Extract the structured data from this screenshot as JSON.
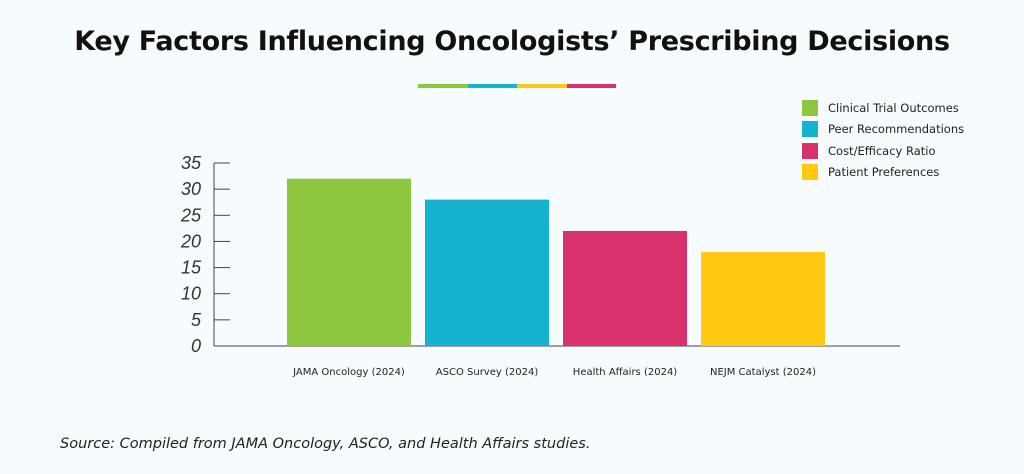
{
  "title": "Key Factors Influencing Oncologists’ Prescribing Decisions",
  "divider_colors": [
    "#8dc63f",
    "#16b3d1",
    "#ffc912",
    "#d9306e"
  ],
  "legend": [
    {
      "label": "Clinical Trial Outcomes",
      "color": "#8dc63f"
    },
    {
      "label": "Peer Recommendations",
      "color": "#16b3d1"
    },
    {
      "label": "Cost/Efficacy Ratio",
      "color": "#d9306e"
    },
    {
      "label": "Patient Preferences",
      "color": "#ffc912"
    }
  ],
  "source": "Source: Compiled from JAMA Oncology, ASCO, and Health Affairs studies.",
  "chart_data": {
    "type": "bar",
    "categories": [
      "JAMA Oncology (2024)",
      "ASCO Survey (2024)",
      "Health Affairs (2024)",
      "NEJM Catalyst (2024)"
    ],
    "values": [
      32,
      28,
      22,
      18
    ],
    "colors": [
      "#8dc63f",
      "#16b3d1",
      "#d9306e",
      "#ffc912"
    ],
    "yticks": [
      0,
      5,
      10,
      15,
      20,
      25,
      30,
      35
    ],
    "ylim": [
      0,
      35
    ],
    "grid": false
  }
}
